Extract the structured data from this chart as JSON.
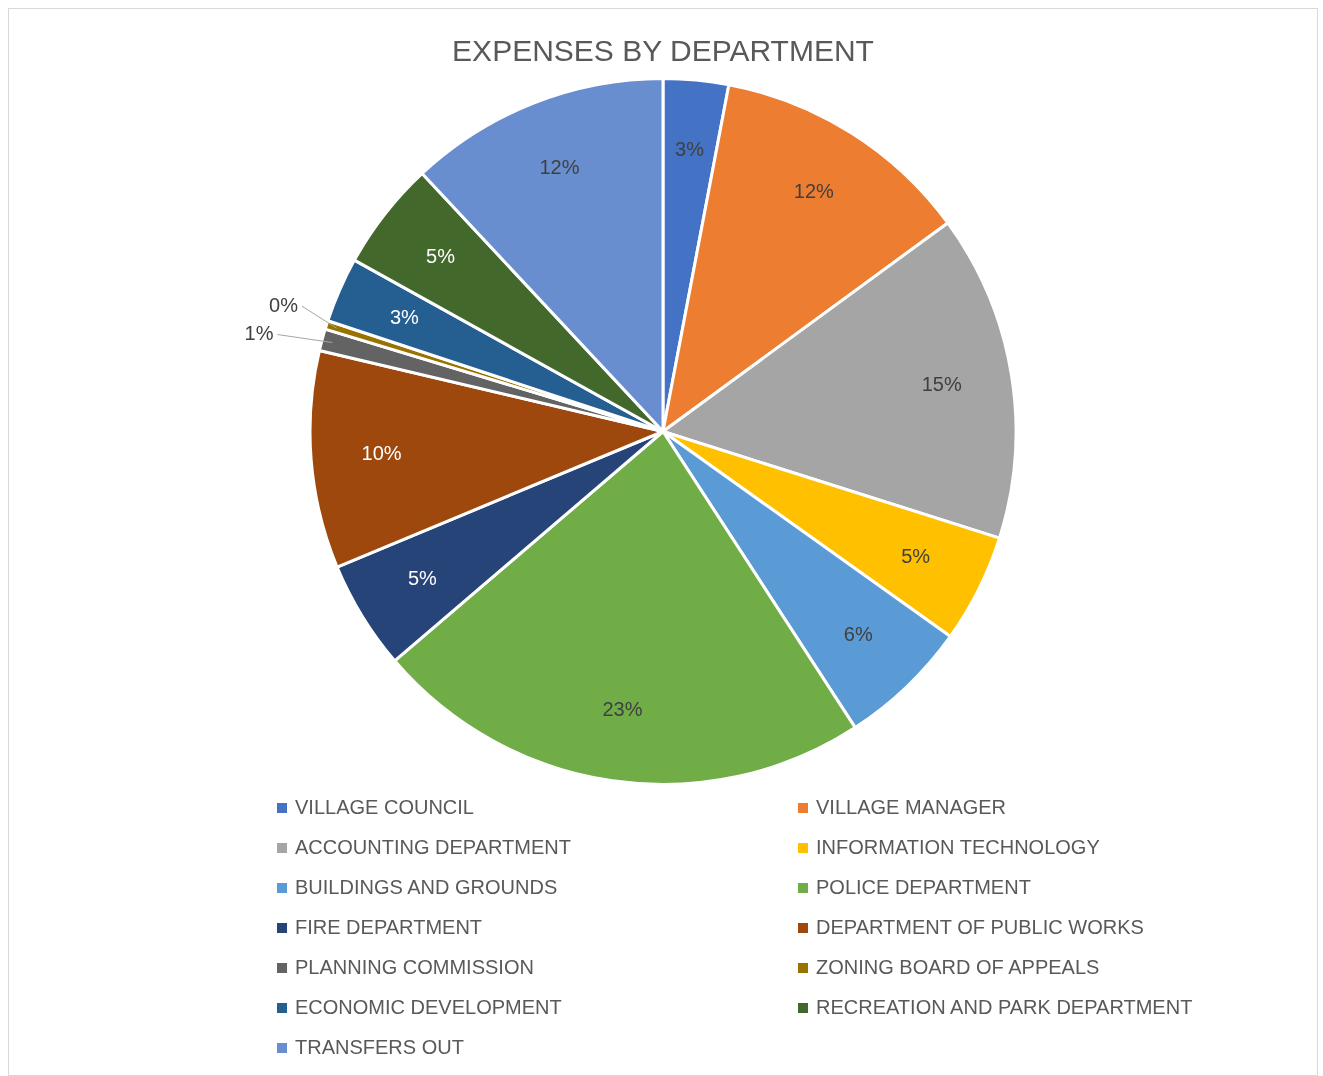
{
  "chart_data": {
    "type": "pie",
    "title": "EXPENSES BY DEPARTMENT",
    "categories": [
      "VILLAGE COUNCIL",
      "VILLAGE MANAGER",
      "ACCOUNTING DEPARTMENT",
      "INFORMATION TECHNOLOGY",
      "BUILDINGS AND GROUNDS",
      "POLICE DEPARTMENT",
      "FIRE DEPARTMENT",
      "DEPARTMENT OF PUBLIC WORKS",
      "PLANNING COMMISSION",
      "ZONING BOARD OF APPEALS",
      "ECONOMIC DEVELOPMENT",
      "RECREATION AND PARK DEPARTMENT",
      "TRANSFERS OUT"
    ],
    "values": [
      3,
      12,
      15,
      5,
      6,
      23,
      5,
      10,
      1,
      0.4,
      3,
      5,
      12
    ],
    "value_labels": [
      "3%",
      "12%",
      "15%",
      "5%",
      "6%",
      "23%",
      "5%",
      "10%",
      "1%",
      "0%",
      "3%",
      "5%",
      "12%"
    ],
    "colors": [
      "#4472c4",
      "#ed7d31",
      "#a5a5a5",
      "#ffc000",
      "#5b9bd5",
      "#70ad47",
      "#264478",
      "#9e480e",
      "#636363",
      "#997300",
      "#255e91",
      "#43682b",
      "#698ed0"
    ],
    "legend": "bottom"
  }
}
